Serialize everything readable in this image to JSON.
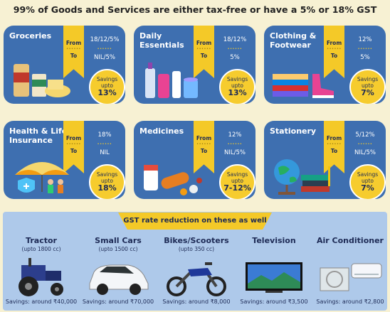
{
  "headline": "99% of Goods and Services are either tax-free or have a 5% or 18% GST",
  "ribbon": {
    "from_label": "From",
    "to_label": "To",
    "dots": "••••••"
  },
  "savings_prefix": "Savings upto",
  "categories": [
    {
      "name": "Groceries",
      "from": "18/12/5%",
      "to": "NIL/5%",
      "savings": "13%",
      "icon": "groceries-icon"
    },
    {
      "name": "Daily Essentials",
      "from": "18/12%",
      "to": "5%",
      "savings": "13%",
      "icon": "toiletries-icon"
    },
    {
      "name": "Clothing & Footwear",
      "from": "12%",
      "to": "5%",
      "savings": "7%",
      "icon": "clothes-shoes-icon"
    },
    {
      "name": "Health & Life Insurance",
      "from": "18%",
      "to": "NIL",
      "savings": "18%",
      "icon": "insurance-umbrella-icon"
    },
    {
      "name": "Medicines",
      "from": "12%",
      "to": "NIL/5%",
      "savings": "7-12%",
      "icon": "medicines-icon"
    },
    {
      "name": "Stationery",
      "from": "5/12%",
      "to": "NIL/5%",
      "savings": "7%",
      "icon": "globe-books-icon"
    }
  ],
  "bottom": {
    "banner": "GST rate reduction on these as well",
    "products": [
      {
        "name": "Tractor",
        "sub": "(upto 1800 cc)",
        "savings": "Savings: around ₹40,000",
        "icon": "tractor-icon"
      },
      {
        "name": "Small Cars",
        "sub": "(upto 1500 cc)",
        "savings": "Savings: around ₹70,000",
        "icon": "car-icon"
      },
      {
        "name": "Bikes/Scooters",
        "sub": "(upto 350 cc)",
        "savings": "Savings: around ₹8,000",
        "icon": "motorbike-icon"
      },
      {
        "name": "Television",
        "sub": "",
        "savings": "Savings: around ₹3,500",
        "icon": "television-icon"
      },
      {
        "name": "Air Conditioner",
        "sub": "",
        "savings": "Savings: around ₹2,800",
        "icon": "air-conditioner-icon"
      }
    ]
  },
  "colors": {
    "card": "#3e6fb0",
    "accent": "#f4c928",
    "background": "#f7f1d3",
    "bottom_panel": "#aec9ea",
    "text_dark": "#1d2a55"
  }
}
